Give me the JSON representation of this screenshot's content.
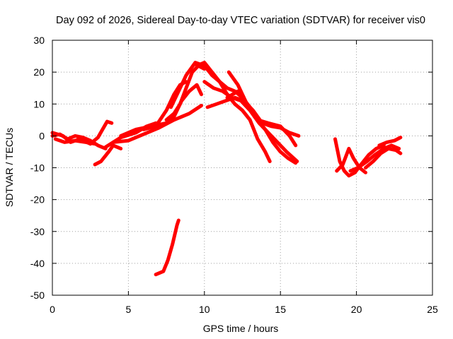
{
  "chart_data": {
    "type": "line",
    "title": "Day 092 of 2026, Sidereal Day-to-day VTEC variation (SDTVAR) for receiver vis0",
    "xlabel": "GPS time / hours",
    "ylabel": "SDTVAR / TECUs",
    "xlim": [
      0,
      25
    ],
    "ylim": [
      -50,
      30
    ],
    "xticks": [
      0,
      5,
      10,
      15,
      20,
      25
    ],
    "yticks": [
      -50,
      -40,
      -30,
      -20,
      -10,
      0,
      10,
      20,
      30
    ],
    "xtick_labels": [
      "0",
      "5",
      "10",
      "15",
      "20",
      "25"
    ],
    "ytick_labels": [
      "-50",
      "-40",
      "-30",
      "-20",
      "-10",
      "0",
      "10",
      "20",
      "30"
    ],
    "grid": true,
    "line_color": "#ff0000",
    "series": [
      {
        "name": "arc-1",
        "points": [
          [
            0,
            0
          ],
          [
            0.5,
            0.5
          ],
          [
            1,
            -1
          ],
          [
            1.5,
            0
          ],
          [
            2,
            -0.5
          ],
          [
            2.5,
            -1.5
          ],
          [
            3,
            -3
          ],
          [
            3.5,
            -4
          ]
        ]
      },
      {
        "name": "arc-2",
        "points": [
          [
            0,
            1
          ],
          [
            0.7,
            0
          ],
          [
            1.2,
            -2
          ],
          [
            1.8,
            -1
          ],
          [
            2.5,
            -2.5
          ],
          [
            3,
            -0.5
          ],
          [
            3.3,
            2
          ],
          [
            3.6,
            4.5
          ],
          [
            3.9,
            4
          ]
        ]
      },
      {
        "name": "arc-3",
        "points": [
          [
            0.2,
            -1
          ],
          [
            0.8,
            -2
          ],
          [
            1.5,
            -1.5
          ],
          [
            2.2,
            -2
          ],
          [
            2.8,
            -2.5
          ]
        ]
      },
      {
        "name": "arc-4",
        "points": [
          [
            2.8,
            -9
          ],
          [
            3.2,
            -8
          ],
          [
            3.7,
            -5
          ],
          [
            4,
            -3
          ],
          [
            4.5,
            -4
          ]
        ]
      },
      {
        "name": "arc-5",
        "points": [
          [
            3.5,
            -3.5
          ],
          [
            4.5,
            -0.5
          ],
          [
            5.5,
            1
          ],
          [
            6.2,
            3
          ],
          [
            6.8,
            4
          ]
        ]
      },
      {
        "name": "arc-6",
        "points": [
          [
            4,
            -2
          ],
          [
            5,
            -1.5
          ],
          [
            6,
            0.5
          ],
          [
            7,
            2.5
          ],
          [
            8,
            5
          ],
          [
            9,
            7
          ],
          [
            9.8,
            9.5
          ]
        ]
      },
      {
        "name": "arc-7",
        "points": [
          [
            4.5,
            0
          ],
          [
            5.5,
            2
          ],
          [
            6.5,
            3
          ],
          [
            7.5,
            4
          ],
          [
            8,
            6
          ],
          [
            8.5,
            11
          ],
          [
            9,
            14
          ],
          [
            9.5,
            16
          ],
          [
            9.8,
            13
          ]
        ]
      },
      {
        "name": "arc-8",
        "points": [
          [
            7.5,
            5
          ],
          [
            8,
            7
          ],
          [
            8.4,
            10
          ],
          [
            8.8,
            15
          ],
          [
            9.2,
            20
          ],
          [
            9.6,
            22
          ],
          [
            10,
            21
          ]
        ]
      },
      {
        "name": "arc-9",
        "points": [
          [
            6,
            2
          ],
          [
            6.8,
            3
          ],
          [
            7.5,
            8
          ],
          [
            8,
            13
          ],
          [
            8.4,
            16
          ],
          [
            8.8,
            17
          ]
        ]
      },
      {
        "name": "arc-10",
        "points": [
          [
            7.8,
            9
          ],
          [
            8.3,
            14
          ],
          [
            8.8,
            19
          ],
          [
            9.4,
            23
          ],
          [
            10,
            22
          ],
          [
            10.5,
            19
          ],
          [
            11,
            17
          ],
          [
            11.5,
            15
          ],
          [
            12,
            14
          ],
          [
            12.5,
            12
          ],
          [
            13,
            9
          ],
          [
            13.5,
            5
          ],
          [
            14,
            2
          ],
          [
            14.5,
            -2
          ],
          [
            15,
            -5
          ],
          [
            15.5,
            -7
          ],
          [
            16,
            -8.5
          ]
        ]
      },
      {
        "name": "arc-11",
        "points": [
          [
            9.5,
            22
          ],
          [
            10,
            23
          ],
          [
            10.5,
            20
          ],
          [
            11,
            17
          ],
          [
            11.5,
            13
          ],
          [
            12,
            10
          ],
          [
            12.5,
            8
          ],
          [
            13,
            5
          ],
          [
            13.5,
            -1
          ],
          [
            14,
            -5
          ],
          [
            14.3,
            -8
          ]
        ]
      },
      {
        "name": "arc-12",
        "points": [
          [
            10,
            17
          ],
          [
            10.6,
            15
          ],
          [
            11.2,
            14
          ],
          [
            11.8,
            12
          ],
          [
            12.4,
            11
          ],
          [
            13,
            8
          ],
          [
            13.6,
            4
          ],
          [
            14.2,
            1
          ],
          [
            14.8,
            -2
          ],
          [
            15.4,
            -5
          ],
          [
            16.1,
            -8
          ]
        ]
      },
      {
        "name": "arc-13",
        "points": [
          [
            10.2,
            9
          ],
          [
            10.8,
            10
          ],
          [
            11.4,
            11
          ],
          [
            12,
            12
          ],
          [
            12.6,
            11
          ],
          [
            13.2,
            8
          ],
          [
            13.8,
            4
          ],
          [
            14.4,
            3
          ],
          [
            15,
            2.5
          ],
          [
            15.6,
            1
          ],
          [
            16.2,
            0
          ]
        ]
      },
      {
        "name": "arc-14",
        "points": [
          [
            11.5,
            12
          ],
          [
            12.2,
            14
          ],
          [
            12.8,
            10
          ],
          [
            13.5,
            5
          ],
          [
            14.2,
            4
          ],
          [
            15,
            3
          ],
          [
            15.6,
            0
          ],
          [
            16,
            -3
          ]
        ]
      },
      {
        "name": "arc-15",
        "points": [
          [
            11.6,
            20
          ],
          [
            12.2,
            16
          ],
          [
            12.8,
            10
          ],
          [
            13.3,
            6
          ]
        ]
      },
      {
        "name": "arc-16",
        "points": [
          [
            6.8,
            -43.5
          ],
          [
            7.3,
            -42.5
          ],
          [
            7.6,
            -39
          ],
          [
            7.9,
            -34
          ],
          [
            8.2,
            -28
          ],
          [
            8.3,
            -26.5
          ]
        ]
      },
      {
        "name": "arc-17",
        "points": [
          [
            18.6,
            -1
          ],
          [
            18.9,
            -8
          ],
          [
            19.2,
            -11
          ],
          [
            19.5,
            -12.5
          ],
          [
            19.9,
            -11.5
          ],
          [
            20.3,
            -9
          ],
          [
            20.8,
            -6
          ],
          [
            21.3,
            -4
          ],
          [
            21.8,
            -3
          ]
        ]
      },
      {
        "name": "arc-18",
        "points": [
          [
            18.7,
            -11
          ],
          [
            19.1,
            -9
          ],
          [
            19.5,
            -4
          ],
          [
            19.8,
            -7
          ],
          [
            20.2,
            -10
          ],
          [
            20.6,
            -11.5
          ]
        ]
      },
      {
        "name": "arc-19",
        "points": [
          [
            19.6,
            -11
          ],
          [
            20.1,
            -10
          ],
          [
            20.7,
            -8
          ],
          [
            21.2,
            -6
          ],
          [
            21.8,
            -4
          ],
          [
            22.3,
            -3
          ],
          [
            22.8,
            -4
          ]
        ]
      },
      {
        "name": "arc-20",
        "points": [
          [
            20.6,
            -10
          ],
          [
            21.1,
            -8
          ],
          [
            21.6,
            -5.5
          ],
          [
            22.1,
            -4
          ],
          [
            22.6,
            -4.5
          ],
          [
            22.9,
            -5.5
          ]
        ]
      },
      {
        "name": "arc-21",
        "points": [
          [
            21.5,
            -3
          ],
          [
            22,
            -2
          ],
          [
            22.5,
            -1.5
          ],
          [
            22.9,
            -0.5
          ]
        ]
      }
    ]
  }
}
